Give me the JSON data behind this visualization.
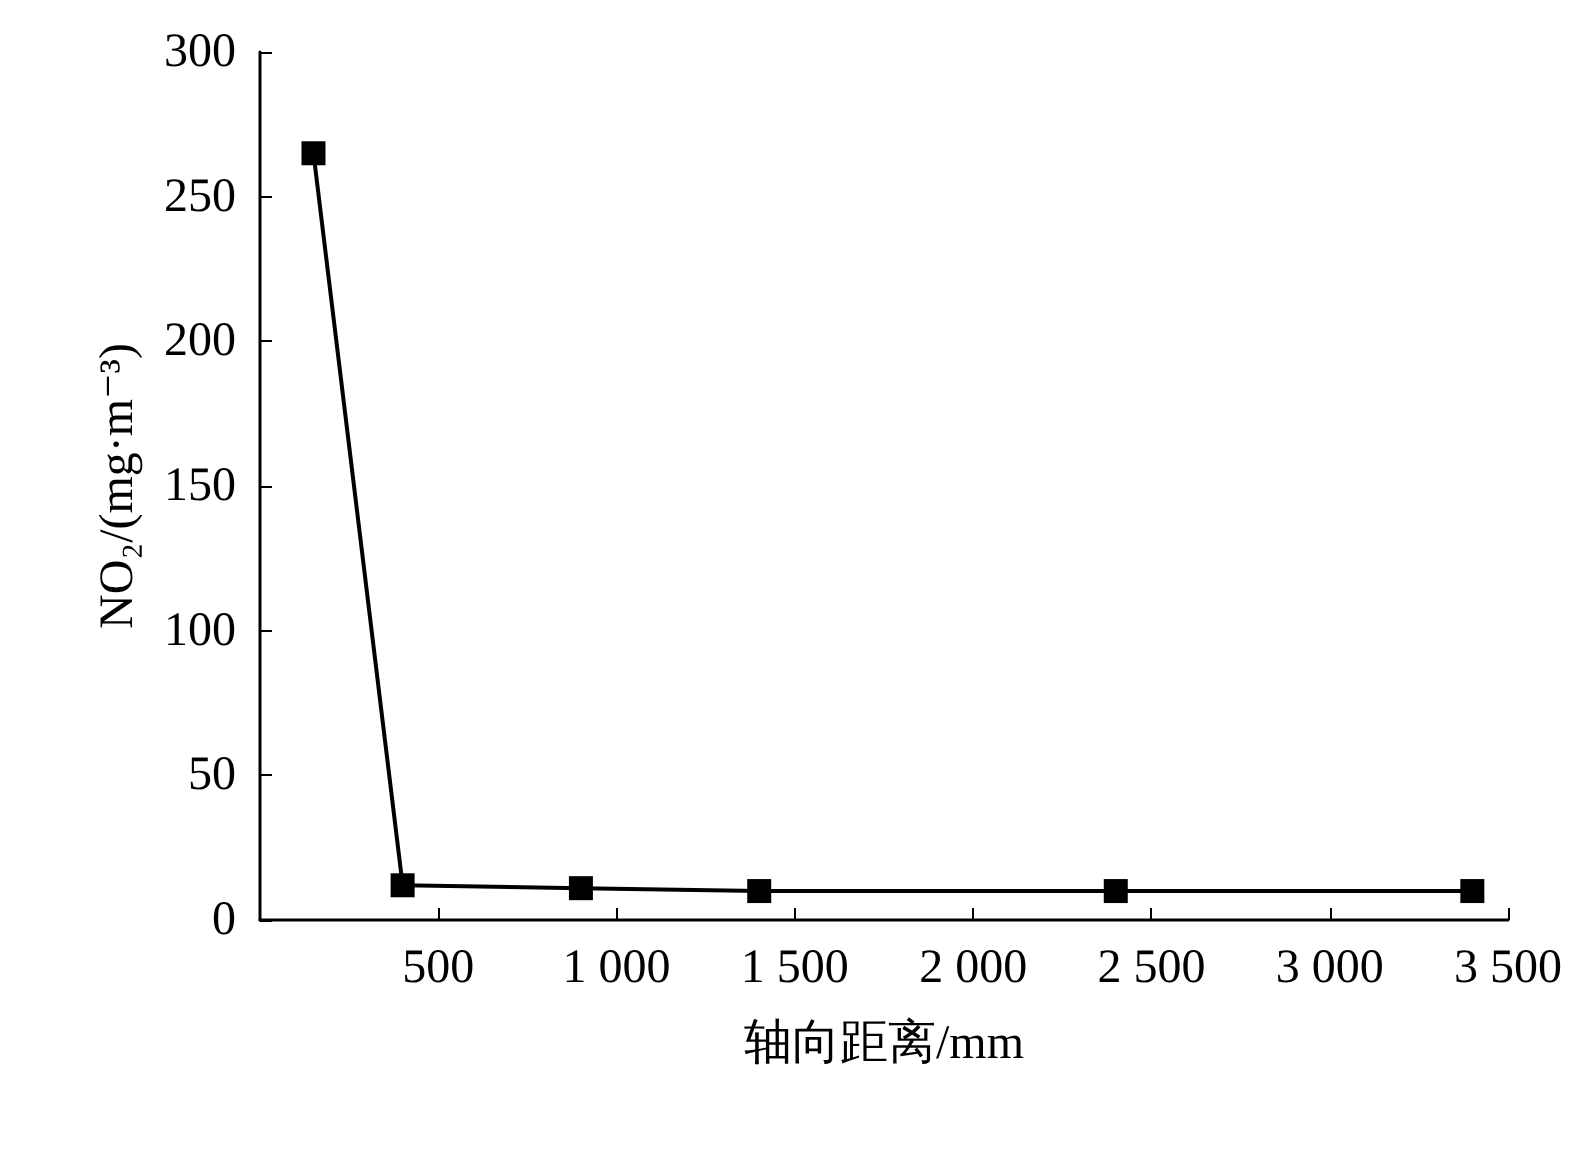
{
  "chart_data": {
    "type": "line",
    "xlabel": "轴向距离/mm",
    "ylabel": "NO₂/(mg·m⁻³)",
    "x": [
      150,
      400,
      900,
      1400,
      2400,
      3400
    ],
    "series": [
      {
        "color": "#000000",
        "values": [
          265,
          12,
          11,
          10,
          10,
          10
        ]
      }
    ],
    "xlim": [
      0,
      3500
    ],
    "xticks": [
      500,
      {
        "value": 1000,
        "label": "1 000"
      },
      {
        "value": 1500,
        "label": "1 500"
      },
      {
        "value": 2000,
        "label": "2 000"
      },
      {
        "value": 2500,
        "label": "2 500"
      },
      {
        "value": 3000,
        "label": "3 000"
      },
      {
        "value": 3500,
        "label": "3 500"
      }
    ],
    "ylim": [
      0,
      300
    ],
    "yticks": [
      0,
      50,
      100,
      150,
      200,
      250,
      300
    ],
    "grid": false,
    "marker": "square",
    "line_style": "solid"
  }
}
